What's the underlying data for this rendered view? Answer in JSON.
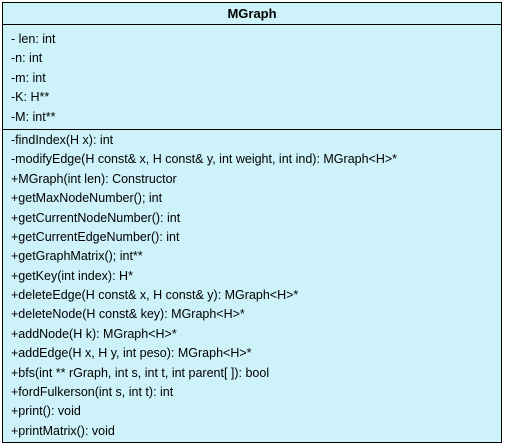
{
  "class_name": "MGraph",
  "attributes": [
    "- len: int",
    "-n: int",
    "-m: int",
    "-K: H**",
    "-M: int**"
  ],
  "methods": [
    "-findIndex(H x): int",
    "-modifyEdge(H const& x, H const& y, int weight, int ind): MGraph<H>*",
    "+MGraph(int len): Constructor",
    "+getMaxNodeNumber(); int",
    "+getCurrentNodeNumber(): int",
    "+getCurrentEdgeNumber(): int",
    "+getGraphMatrix(); int**",
    "+getKey(int index): H*",
    "+deleteEdge(H const& x, H const& y): MGraph<H>*",
    "+deleteNode(H const& key): MGraph<H>*",
    "+addNode(H k): MGraph<H>*",
    "+addEdge(H x, H y, int peso): MGraph<H>*",
    "+bfs(int ** rGraph, int s, int t, int parent[ ]): bool",
    "+fordFulkerson(int s, int t): int",
    "+print(): void",
    "+printMatrix(): void"
  ],
  "colors": {
    "fill": "#cdf2f9",
    "border": "#000000"
  }
}
